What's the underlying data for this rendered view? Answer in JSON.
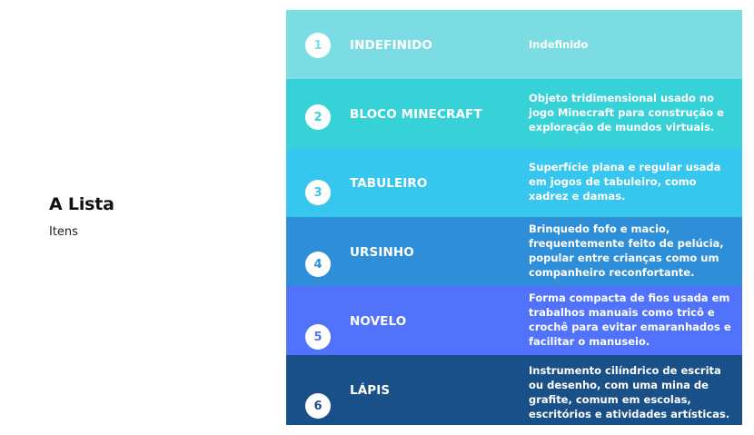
{
  "sidebar": {
    "title": "A Lista",
    "subtitle": "Itens"
  },
  "items": [
    {
      "number": "1",
      "label": "INDEFINIDO",
      "description": "Indefinido",
      "color": "#7BDDE3"
    },
    {
      "number": "2",
      "label": "BLOCO MINECRAFT",
      "description": "Objeto tridimensional usado no jogo Minecraft para construção e exploração de mundos virtuais.",
      "color": "#36D2D7"
    },
    {
      "number": "3",
      "label": "TABULEIRO",
      "description": "Superfície plana e regular usada em jogos de tabuleiro, como xadrez e damas.",
      "color": "#37C6EE"
    },
    {
      "number": "4",
      "label": "URSINHO",
      "description": "Brinquedo fofo e macio, frequentemente feito de pelúcia, popular entre crianças como um companheiro reconfortante.",
      "color": "#2E8ED7"
    },
    {
      "number": "5",
      "label": "NOVELO",
      "description": "Forma compacta de fios usada em trabalhos manuais como tricô e crochê para evitar emaranhados e facilitar o manuseio.",
      "color": "#5172FA"
    },
    {
      "number": "6",
      "label": "LÁPIS",
      "description": "Instrumento cilíndrico de escrita ou desenho, com uma mina de grafite, comum em escolas, escritórios e atividades artísticas.",
      "color": "#1A5088"
    }
  ]
}
